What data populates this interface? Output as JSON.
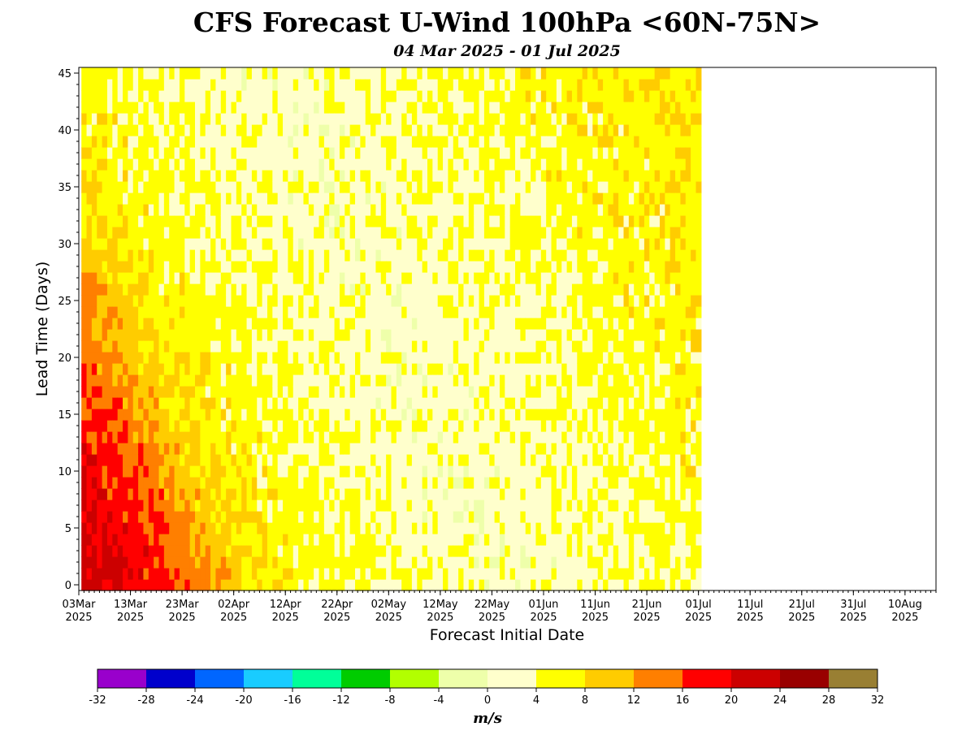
{
  "chart_data": {
    "type": "heatmap",
    "title": "CFS Forecast U-Wind 100hPa <60N-75N>",
    "subtitle": "04 Mar 2025 - 01 Jul 2025",
    "xlabel": "Forecast Initial Date",
    "ylabel": "Lead Time (Days)",
    "x_range": [
      "2025-03-03",
      "2025-08-16"
    ],
    "y_range": [
      0,
      45
    ],
    "init_dates": [
      "2025-03-04",
      "2025-07-01"
    ],
    "lead_days": [
      0,
      45
    ],
    "x_ticks": [
      {
        "date": "2025-03-03",
        "label": "03Mar",
        "year": "2025"
      },
      {
        "date": "2025-03-13",
        "label": "13Mar",
        "year": "2025"
      },
      {
        "date": "2025-03-23",
        "label": "23Mar",
        "year": "2025"
      },
      {
        "date": "2025-04-02",
        "label": "02Apr",
        "year": "2025"
      },
      {
        "date": "2025-04-12",
        "label": "12Apr",
        "year": "2025"
      },
      {
        "date": "2025-04-22",
        "label": "22Apr",
        "year": "2025"
      },
      {
        "date": "2025-05-02",
        "label": "02May",
        "year": "2025"
      },
      {
        "date": "2025-05-12",
        "label": "12May",
        "year": "2025"
      },
      {
        "date": "2025-05-22",
        "label": "22May",
        "year": "2025"
      },
      {
        "date": "2025-06-01",
        "label": "01Jun",
        "year": "2025"
      },
      {
        "date": "2025-06-11",
        "label": "11Jun",
        "year": "2025"
      },
      {
        "date": "2025-06-21",
        "label": "21Jun",
        "year": "2025"
      },
      {
        "date": "2025-07-01",
        "label": "01Jul",
        "year": "2025"
      },
      {
        "date": "2025-07-11",
        "label": "11Jul",
        "year": "2025"
      },
      {
        "date": "2025-07-21",
        "label": "21Jul",
        "year": "2025"
      },
      {
        "date": "2025-07-31",
        "label": "31Jul",
        "year": "2025"
      },
      {
        "date": "2025-08-10",
        "label": "10Aug",
        "year": "2025"
      }
    ],
    "y_ticks": [
      0,
      5,
      10,
      15,
      20,
      25,
      30,
      35,
      40,
      45
    ],
    "colorbar": {
      "unit": "m/s",
      "bounds": [
        -32,
        -28,
        -24,
        -20,
        -16,
        -12,
        -8,
        -4,
        0,
        4,
        8,
        12,
        16,
        20,
        24,
        28,
        32
      ],
      "colors": [
        "#9900cc",
        "#0000cc",
        "#0066ff",
        "#19ccff",
        "#00ff99",
        "#00cc00",
        "#b2ff00",
        "#eeffaa",
        "#ffffcc",
        "#ffff00",
        "#ffcc00",
        "#ff7f00",
        "#ff0000",
        "#cc0000",
        "#990000",
        "#997f33"
      ]
    },
    "approx_field": {
      "value_unit": "m/s",
      "by_verification_date": [
        {
          "date": "2025-03-04",
          "u": 22
        },
        {
          "date": "2025-03-15",
          "u": 19
        },
        {
          "date": "2025-03-25",
          "u": 15
        },
        {
          "date": "2025-04-05",
          "u": 9
        },
        {
          "date": "2025-04-15",
          "u": 6
        },
        {
          "date": "2025-04-25",
          "u": 5
        },
        {
          "date": "2025-05-10",
          "u": 3
        },
        {
          "date": "2025-05-25",
          "u": 2
        },
        {
          "date": "2025-06-10",
          "u": 3
        },
        {
          "date": "2025-06-25",
          "u": 4
        },
        {
          "date": "2025-07-10",
          "u": 5.5
        },
        {
          "date": "2025-07-25",
          "u": 6.5
        },
        {
          "date": "2025-08-15",
          "u": 7.5
        }
      ]
    }
  }
}
